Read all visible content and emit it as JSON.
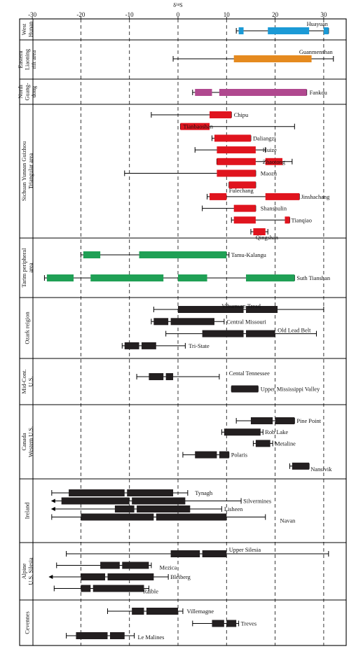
{
  "chart_data": {
    "type": "range",
    "x_axis_title": "δ³⁴S",
    "xlim": [
      -30,
      33
    ],
    "xticks": [
      -30,
      -20,
      -10,
      0,
      10,
      20,
      30
    ],
    "dashed_gridlines_at": [
      -20,
      -10,
      0,
      10,
      20,
      30
    ],
    "colors": {
      "West Hunan": "#1b9ad6",
      "Eastern Liaoning rift area": "#e58a1f",
      "North Guangdong": "#b0488f",
      "Sichuan Yunnan Guizhou": "#e0141e",
      "Tarim": "#1fa055",
      "Other": "#231f20"
    },
    "regions": [
      {
        "name": "West Hunan",
        "label_lines": [
          "West",
          "Hunan"
        ],
        "color": "#1b9ad6",
        "deposits": [
          {
            "name": "Huayuan",
            "range": [
              12,
              31
            ],
            "bars": [
              [
                12.5,
                13.5
              ],
              [
                18.5,
                27
              ],
              [
                30,
                31
              ]
            ]
          }
        ]
      },
      {
        "name": "Eastern Liaoning rift area",
        "label_lines": [
          "Eastern",
          "Liaoning",
          "rift area"
        ],
        "color": "#e58a1f",
        "deposits": [
          {
            "name": "Guanmenshan",
            "range": [
              -1,
              32
            ],
            "bars": [
              [
                11.5,
                27.5
              ]
            ]
          }
        ]
      },
      {
        "name": "North Guangdong",
        "label_lines": [
          "North",
          "Guang-",
          "dong"
        ],
        "color": "#b0488f",
        "deposits": [
          {
            "name": "Fankou",
            "range": [
              3,
              26.5
            ],
            "bars": [
              [
                3.5,
                7
              ],
              [
                8.5,
                26.5
              ]
            ]
          }
        ]
      },
      {
        "name": "Sichuan Yunnan Guizhou Triangular area",
        "label_lines": [
          "Sichuan Yunnan Guizhou",
          "Triangular area"
        ],
        "color": "#e0141e",
        "deposits": [
          {
            "name": "Chipu",
            "range": [
              -5.5,
              11
            ],
            "bars": [
              [
                6.5,
                11
              ]
            ]
          },
          {
            "name": "Tianbaoshan",
            "range": [
              0.5,
              24
            ],
            "bars": [
              [
                0.5,
                6.5
              ]
            ]
          },
          {
            "name": "Daliangzi",
            "range": [
              7,
              15
            ],
            "bars": [
              [
                7.5,
                15
              ]
            ]
          },
          {
            "name": "Huize",
            "range": [
              3.5,
              18
            ],
            "bars": [
              [
                8,
                16
              ]
            ]
          },
          {
            "name": "Zhaotong",
            "range": [
              8,
              23.5
            ],
            "bars": [
              [
                8,
                16
              ],
              [
                18,
                21.5
              ]
            ]
          },
          {
            "name": "Maozu",
            "range": [
              -11,
              16
            ],
            "bars": [
              [
                8,
                16
              ]
            ]
          },
          {
            "name": "Fulechang",
            "range": [
              10.5,
              16
            ],
            "bars": [
              [
                10.5,
                16
              ]
            ]
          },
          {
            "name": "Jinshachang",
            "range": [
              6,
              25
            ],
            "bars": [
              [
                6.5,
                10
              ],
              [
                18,
                25
              ]
            ]
          },
          {
            "name": "Shanshulin",
            "range": [
              5,
              16
            ],
            "bars": [
              [
                11.5,
                16
              ]
            ]
          },
          {
            "name": "Tianqiao",
            "range": [
              11,
              23
            ],
            "bars": [
              [
                11.5,
                16
              ],
              [
                22,
                23
              ]
            ]
          },
          {
            "name": "Qingshan",
            "range": [
              15,
              18.5
            ],
            "bars": [
              [
                15.5,
                18
              ]
            ]
          }
        ]
      },
      {
        "name": "Tarim peripheral area",
        "label_lines": [
          "Tarim peripheral",
          "area"
        ],
        "color": "#1fa055",
        "deposits": [
          {
            "name": "Tamu-Kalangu",
            "range": [
              -20,
              10.5
            ],
            "bars": [
              [
                -19.5,
                -16
              ],
              [
                -8,
                10
              ]
            ]
          },
          {
            "name": "Suth Tianshan",
            "range": [
              -27.5,
              24
            ],
            "bars": [
              [
                -27,
                -21.5
              ],
              [
                -18,
                -3
              ],
              [
                0,
                6
              ],
              [
                14,
                24
              ]
            ]
          }
        ]
      },
      {
        "name": "Ozark reigion",
        "label_lines": [
          "Ozark reigion"
        ],
        "color": "#231f20",
        "deposits": [
          {
            "name": "Viburnurn Tread",
            "range": [
              -5,
              30
            ],
            "bars": [
              [
                0,
                13.5
              ],
              [
                14,
                20.5
              ]
            ]
          },
          {
            "name": "Central Missouri",
            "range": [
              -5.5,
              9.5
            ],
            "bars": [
              [
                -5,
                -2
              ],
              [
                -1.5,
                7.5
              ]
            ]
          },
          {
            "name": "Old Lead Belt",
            "range": [
              -2.5,
              28.5
            ],
            "bars": [
              [
                5,
                13.5
              ],
              [
                14,
                20
              ]
            ]
          },
          {
            "name": "Tri-State",
            "range": [
              -11.5,
              1.5
            ],
            "bars": [
              [
                -11,
                -8
              ],
              [
                -7.5,
                -4.5
              ]
            ]
          }
        ]
      },
      {
        "name": "Mid-Cont. U.S.",
        "label_lines": [
          "Mid-Cont.",
          "U.S."
        ],
        "color": "#231f20",
        "deposits": [
          {
            "name": "Cental Tennessee",
            "range": [
              -8.5,
              8.5
            ],
            "bars": [
              [
                -6,
                -3
              ],
              [
                -2.5,
                -1
              ]
            ]
          },
          {
            "name": "Upper Mississippi Valley",
            "range": [
              11,
              16.5
            ],
            "bars": [
              [
                11,
                16.5
              ]
            ]
          }
        ]
      },
      {
        "name": "Canada Western U.S.",
        "label_lines": [
          "Canada",
          "Western U.S."
        ],
        "color": "#231f20",
        "deposits": [
          {
            "name": "Pine Point",
            "range": [
              12,
              24
            ],
            "bars": [
              [
                15,
                19.5
              ],
              [
                20,
                24
              ]
            ]
          },
          {
            "name": "Rob Lake",
            "range": [
              9,
              17.5
            ],
            "bars": [
              [
                9.5,
                17
              ]
            ]
          },
          {
            "name": "Metaline",
            "range": [
              15.5,
              19.5
            ],
            "bars": [
              [
                16,
                19
              ]
            ]
          },
          {
            "name": "Polaris",
            "range": [
              1,
              10.5
            ],
            "bars": [
              [
                3.5,
                8
              ],
              [
                8.5,
                10.5
              ]
            ]
          },
          {
            "name": "Nansivik",
            "range": [
              23,
              27
            ],
            "bars": [
              [
                23.5,
                27
              ]
            ]
          }
        ]
      },
      {
        "name": "Ireland",
        "label_lines": [
          "Ireland"
        ],
        "color": "#231f20",
        "deposits": [
          {
            "name": "Tynagh",
            "range": [
              -26,
              2
            ],
            "bars": [
              [
                -22.5,
                -11
              ],
              [
                -10.5,
                -1
              ]
            ]
          },
          {
            "name": "Silvermines",
            "range": [
              -26,
              13
            ],
            "bars": [
              [
                -24,
                -10
              ],
              [
                -9.5,
                1.5
              ]
            ],
            "arrow_left": true
          },
          {
            "name": "Lisheen",
            "range": [
              -26,
              9
            ],
            "bars": [
              [
                -13,
                -9
              ],
              [
                -8.5,
                2.5
              ]
            ],
            "arrow_left": true
          },
          {
            "name": "Navan",
            "range": [
              -26,
              18
            ],
            "bars": [
              [
                -20,
                -5
              ],
              [
                -4.5,
                10
              ]
            ]
          }
        ]
      },
      {
        "name": "Alpine U.S. Silesia",
        "label_lines": [
          "Alpine",
          "U.S. Silesia"
        ],
        "color": "#231f20",
        "deposits": [
          {
            "name": "Upper Silesia",
            "range": [
              -23,
              31
            ],
            "bars": [
              [
                -1.5,
                4.5
              ],
              [
                5,
                10
              ]
            ]
          },
          {
            "name": "Mezica",
            "range": [
              -25,
              -5.5
            ],
            "bars": [
              [
                -16,
                -12
              ],
              [
                -11.5,
                -6
              ]
            ]
          },
          {
            "name": "Bleiberg",
            "range": [
              -26.5,
              -2
            ],
            "bars": [
              [
                -20,
                -15
              ],
              [
                -14.5,
                -5
              ]
            ],
            "arrow_left": true
          },
          {
            "name": "Raible",
            "range": [
              -25.5,
              -6
            ],
            "bars": [
              [
                -20,
                -18
              ],
              [
                -17.5,
                -7
              ]
            ]
          }
        ]
      },
      {
        "name": "Cevennes",
        "label_lines": [
          "Cevennes"
        ],
        "color": "#231f20",
        "deposits": [
          {
            "name": "Villemagne",
            "range": [
              -14.5,
              1
            ],
            "bars": [
              [
                -9.5,
                -7
              ],
              [
                -6.5,
                0
              ]
            ]
          },
          {
            "name": "Treves",
            "range": [
              3,
              12.5
            ],
            "bars": [
              [
                7,
                9.5
              ],
              [
                10,
                12
              ]
            ]
          },
          {
            "name": "Le Malines",
            "range": [
              -23,
              -9
            ],
            "bars": [
              [
                -21,
                -14.5
              ],
              [
                -14,
                -11
              ]
            ]
          }
        ]
      }
    ]
  }
}
